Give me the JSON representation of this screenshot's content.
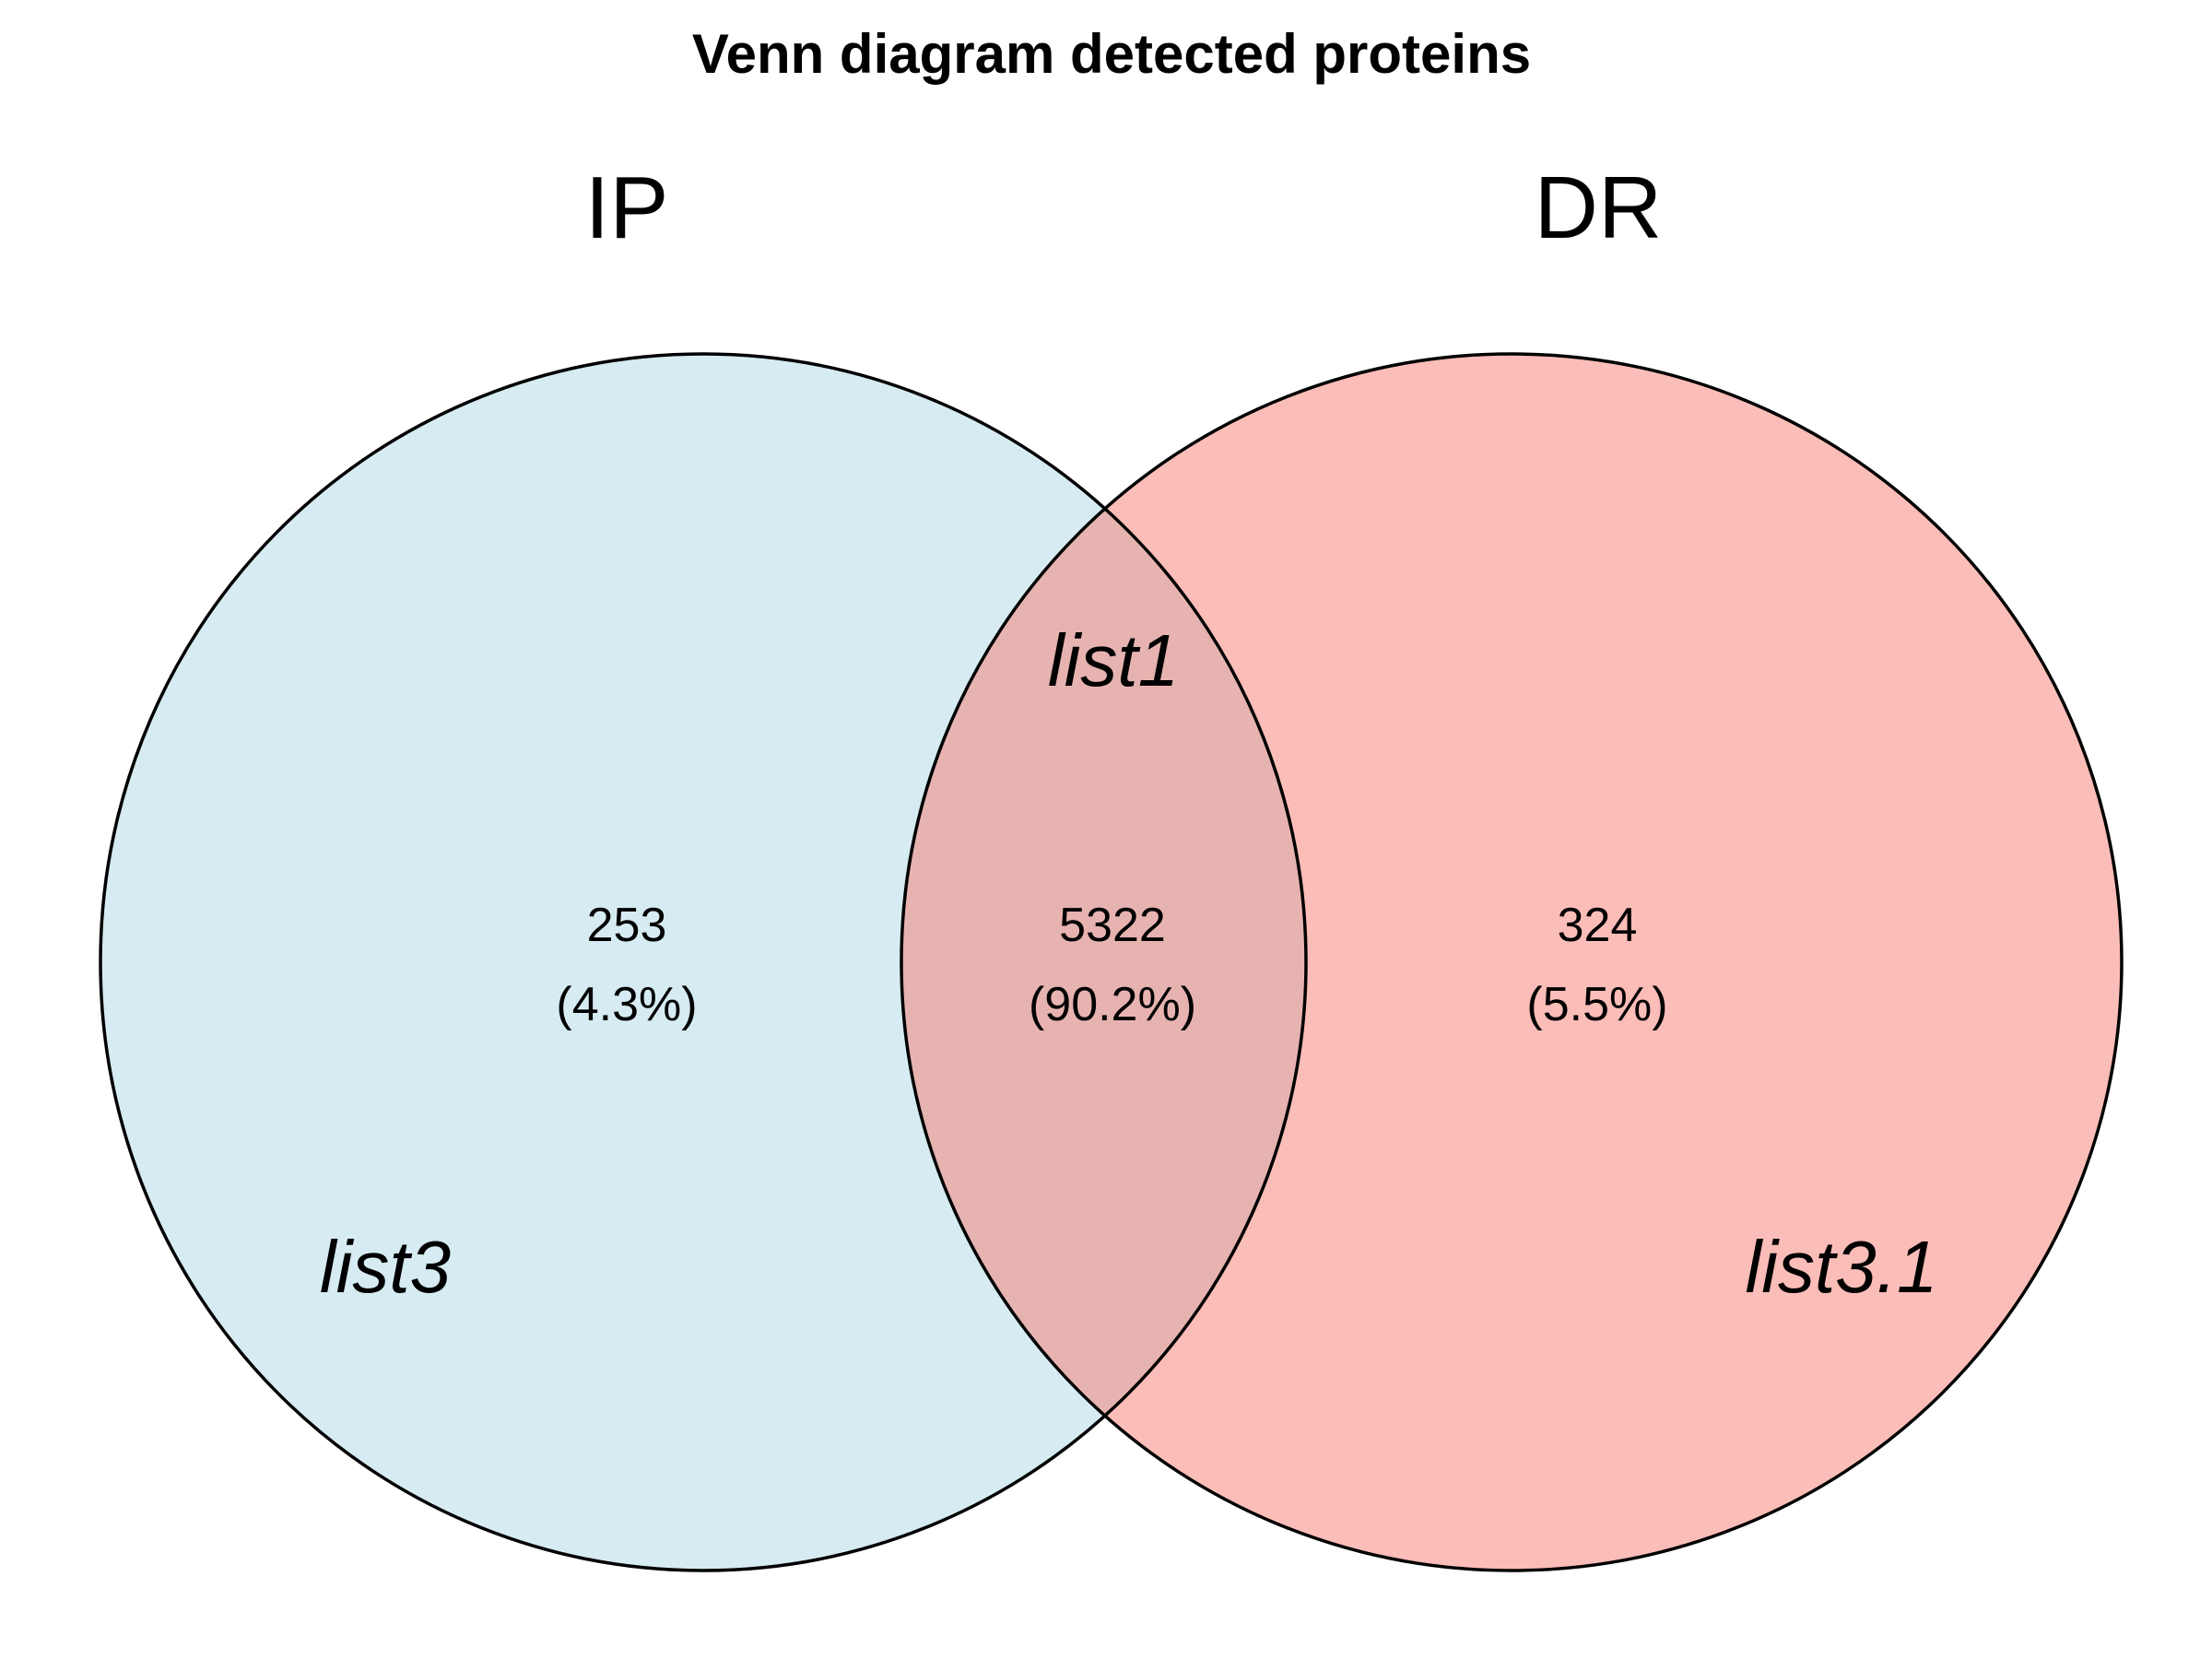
{
  "title": "Venn diagram detected proteins",
  "colors": {
    "set_a_fill": "#d6ebf2",
    "set_b_fill": "#fbbdb8",
    "overlap_fill": "#e6b3b0",
    "outline": "#000000"
  },
  "sets": [
    {
      "name": "IP",
      "region_label": "list3"
    },
    {
      "name": "DR",
      "region_label": "list3.1"
    }
  ],
  "regions": {
    "ip_only": {
      "count": "253",
      "percent": "(4.3%)"
    },
    "overlap": {
      "label": "list1",
      "count": "5322",
      "percent": "(90.2%)"
    },
    "dr_only": {
      "count": "324",
      "percent": "(5.5%)"
    }
  }
}
